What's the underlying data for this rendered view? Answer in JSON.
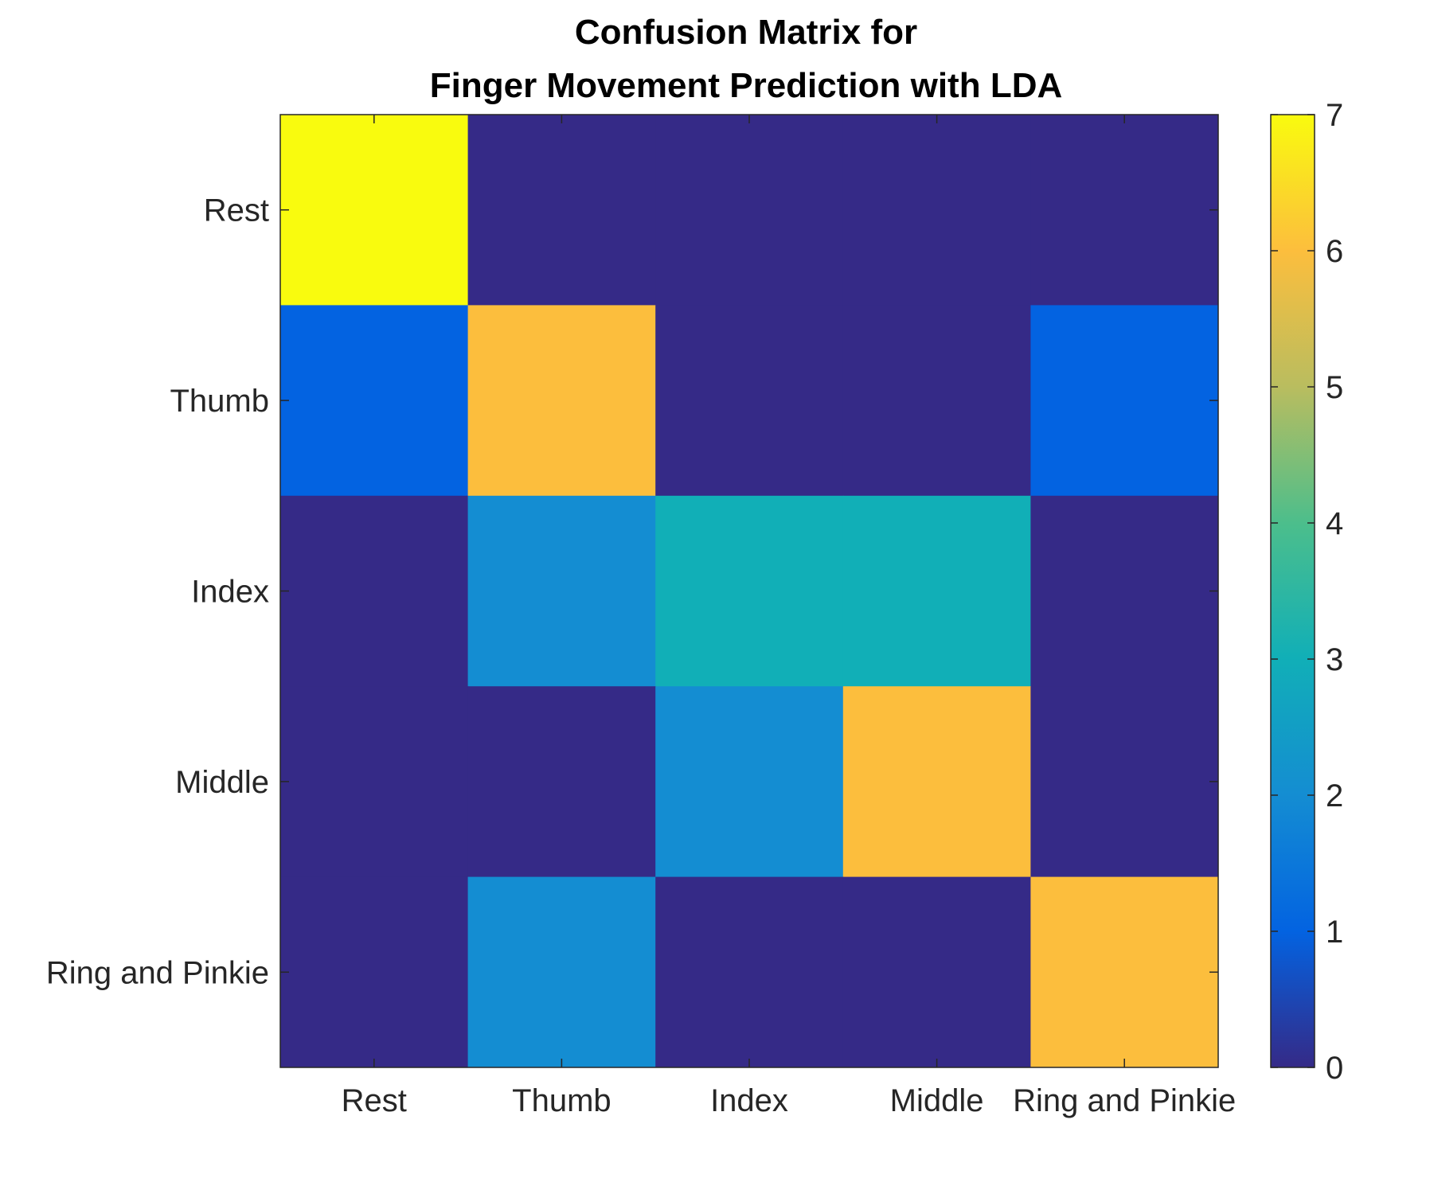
{
  "chart_data": {
    "type": "heatmap",
    "title": [
      "Confusion Matrix for",
      "Finger Movement Prediction with LDA"
    ],
    "x_categories": [
      "Rest",
      "Thumb",
      "Index",
      "Middle",
      "Ring and Pinkie"
    ],
    "y_categories": [
      "Rest",
      "Thumb",
      "Index",
      "Middle",
      "Ring and Pinkie"
    ],
    "matrix": [
      [
        7,
        0,
        0,
        0,
        0
      ],
      [
        1,
        6,
        0,
        0,
        1
      ],
      [
        0,
        2,
        3,
        3,
        0
      ],
      [
        0,
        0,
        2,
        6,
        0
      ],
      [
        0,
        2,
        0,
        0,
        6
      ]
    ],
    "colormap": "parula",
    "color_range": [
      0,
      7
    ],
    "colorbar_ticks": [
      0,
      1,
      2,
      3,
      4,
      5,
      6,
      7
    ],
    "colorbar": true,
    "grid": false
  }
}
